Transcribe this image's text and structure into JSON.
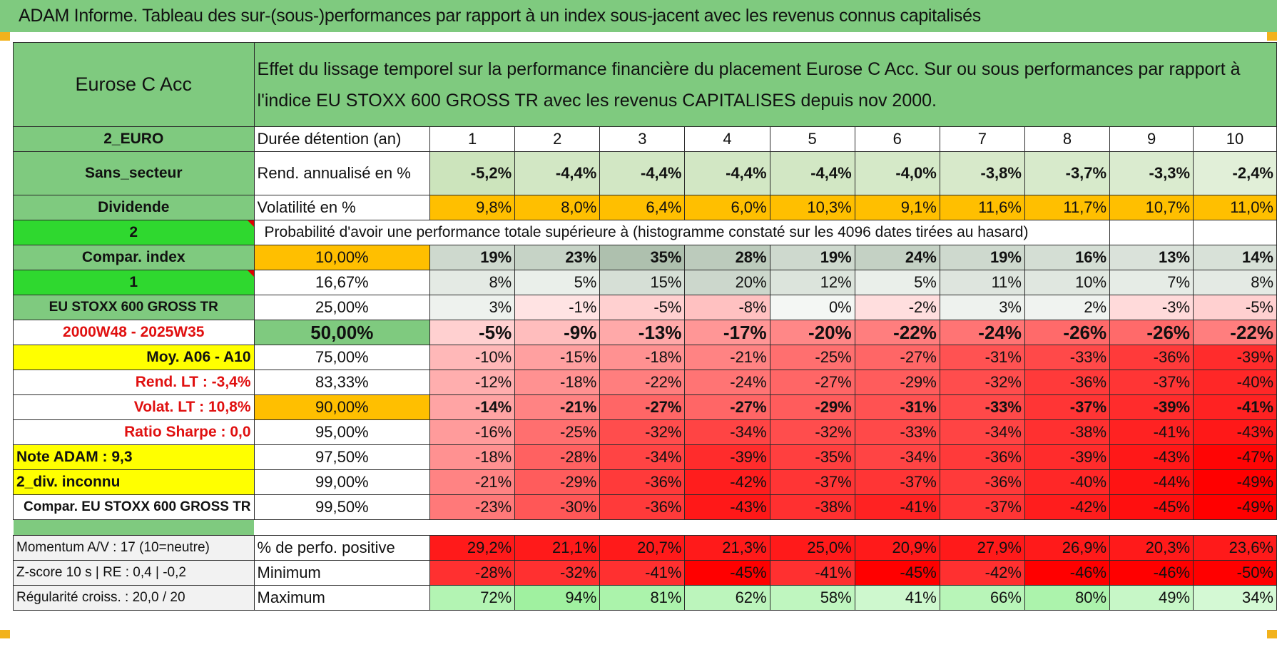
{
  "title": "ADAM Informe. Tableau des sur-(sous-)performances par rapport à un index sous-jacent avec les revenus connus capitalisés",
  "left": {
    "fund": "Eurose C Acc",
    "currency": "2_EURO",
    "sector": "Sans_secteur",
    "dividend": "Dividende",
    "count2": "2",
    "compar_index": "Compar. index",
    "count1": "1",
    "index_name": "EU STOXX 600 GROSS TR",
    "period": "2000W48 - 2025W35",
    "moy": "Moy. A06 - A10",
    "rend_lt": "Rend. LT :    -3,4%",
    "volat_lt": "Volat. LT :    10,8%",
    "sharpe": "Ratio Sharpe :     0,0",
    "note_adam": "Note ADAM : 9,3",
    "div_status": "2_div. inconnu",
    "compar_full": "Compar. EU STOXX 600 GROSS TR",
    "momentum": "Momentum A/V : 17 (10=neutre)",
    "zscore": "Z-score 10 s | RE : 0,4 | -0,2",
    "regularite": "Régularité croiss. : 20,0 / 20"
  },
  "description": "Effet du lissage temporel sur la performance financière du placement Eurose C Acc. Sur ou sous performances par rapport à l'indice EU STOXX 600 GROSS TR avec les revenus CAPITALISES depuis nov 2000.",
  "labels": {
    "duration": "Durée détention (an)",
    "rend": "Rend. annualisé en %",
    "volat": "Volatilité en %",
    "proba": "Probabilité d'avoir une performance totale supérieure à (histogramme constaté sur les 4096 dates tirées au hasard)",
    "pos": "% de perfo. positive",
    "min": "Minimum",
    "max": "Maximum"
  },
  "years": [
    "1",
    "2",
    "3",
    "4",
    "5",
    "6",
    "7",
    "8",
    "9",
    "10"
  ],
  "rend_values": [
    "-5,2%",
    "-4,4%",
    "-4,4%",
    "-4,4%",
    "-4,4%",
    "-4,0%",
    "-3,8%",
    "-3,7%",
    "-3,3%",
    "-2,4%"
  ],
  "volat_values": [
    "9,8%",
    "8,0%",
    "6,4%",
    "6,0%",
    "10,3%",
    "9,1%",
    "11,6%",
    "11,7%",
    "10,7%",
    "11,0%"
  ],
  "prob_rows": [
    {
      "level": "10,00%",
      "values": [
        "19%",
        "23%",
        "35%",
        "28%",
        "19%",
        "24%",
        "19%",
        "16%",
        "13%",
        "14%"
      ]
    },
    {
      "level": "16,67%",
      "values": [
        "8%",
        "5%",
        "15%",
        "20%",
        "12%",
        "5%",
        "11%",
        "10%",
        "7%",
        "8%"
      ]
    },
    {
      "level": "25,00%",
      "values": [
        "3%",
        "-1%",
        "-5%",
        "-8%",
        "0%",
        "-2%",
        "3%",
        "2%",
        "-3%",
        "-5%"
      ]
    },
    {
      "level": "50,00%",
      "values": [
        "-5%",
        "-9%",
        "-13%",
        "-17%",
        "-20%",
        "-22%",
        "-24%",
        "-26%",
        "-26%",
        "-22%"
      ]
    },
    {
      "level": "75,00%",
      "values": [
        "-10%",
        "-15%",
        "-18%",
        "-21%",
        "-25%",
        "-27%",
        "-31%",
        "-33%",
        "-36%",
        "-39%"
      ]
    },
    {
      "level": "83,33%",
      "values": [
        "-12%",
        "-18%",
        "-22%",
        "-24%",
        "-27%",
        "-29%",
        "-32%",
        "-36%",
        "-37%",
        "-40%"
      ]
    },
    {
      "level": "90,00%",
      "values": [
        "-14%",
        "-21%",
        "-27%",
        "-27%",
        "-29%",
        "-31%",
        "-33%",
        "-37%",
        "-39%",
        "-41%"
      ]
    },
    {
      "level": "95,00%",
      "values": [
        "-16%",
        "-25%",
        "-32%",
        "-34%",
        "-32%",
        "-33%",
        "-34%",
        "-38%",
        "-41%",
        "-43%"
      ]
    },
    {
      "level": "97,50%",
      "values": [
        "-18%",
        "-28%",
        "-34%",
        "-39%",
        "-35%",
        "-34%",
        "-36%",
        "-39%",
        "-43%",
        "-47%"
      ]
    },
    {
      "level": "99,00%",
      "values": [
        "-21%",
        "-29%",
        "-36%",
        "-42%",
        "-37%",
        "-37%",
        "-36%",
        "-40%",
        "-44%",
        "-49%"
      ]
    },
    {
      "level": "99,50%",
      "values": [
        "-23%",
        "-30%",
        "-36%",
        "-43%",
        "-38%",
        "-41%",
        "-37%",
        "-42%",
        "-45%",
        "-49%"
      ]
    }
  ],
  "pos_values": [
    "29,2%",
    "21,1%",
    "20,7%",
    "21,3%",
    "25,0%",
    "20,9%",
    "27,9%",
    "26,9%",
    "20,3%",
    "23,6%"
  ],
  "min_values": [
    "-28%",
    "-32%",
    "-41%",
    "-45%",
    "-41%",
    "-45%",
    "-42%",
    "-46%",
    "-46%",
    "-50%"
  ],
  "max_values": [
    "72%",
    "94%",
    "81%",
    "62%",
    "58%",
    "41%",
    "66%",
    "80%",
    "49%",
    "34%"
  ],
  "colors": {
    "header_green": "#7fca7f",
    "bright_green": "#2fd82f",
    "highlight_yellow": "#ffff00",
    "highlight_orange": "#ffbf00",
    "negative_red": "#ff0000",
    "positive_green": "#b4f2b4",
    "label_red": "#e01010"
  }
}
